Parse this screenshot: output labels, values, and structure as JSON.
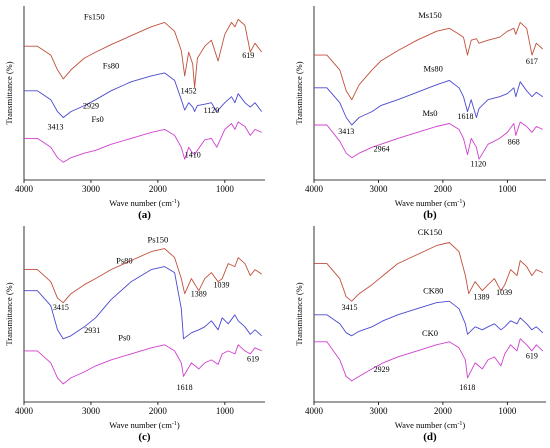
{
  "chart_data": [
    {
      "type": "line",
      "panel": "(a)",
      "xlabel": "Wave number (cm",
      "xlabel_sup": "-1",
      "xlabel_end": ")",
      "ylabel": "Transmittance (%)",
      "xlim": [
        4000,
        400
      ],
      "xticks": [
        "4000",
        "3000",
        "2000",
        "1000"
      ],
      "colors": [
        "#c0503c",
        "#4a4ad0",
        "#d040d0"
      ],
      "series": [
        {
          "name": "Fs150",
          "color": "#c0503c",
          "x": [
            4000,
            3800,
            3600,
            3500,
            3413,
            3300,
            3100,
            2929,
            2700,
            2400,
            2100,
            1900,
            1750,
            1650,
            1600,
            1540,
            1480,
            1452,
            1410,
            1300,
            1200,
            1100,
            1000,
            900,
            850,
            800,
            700,
            619,
            550,
            450
          ],
          "y": [
            0.78,
            0.78,
            0.72,
            0.62,
            0.56,
            0.62,
            0.7,
            0.74,
            0.79,
            0.85,
            0.91,
            0.94,
            0.88,
            0.75,
            0.58,
            0.74,
            0.66,
            0.5,
            0.7,
            0.78,
            0.82,
            0.68,
            0.86,
            0.94,
            0.91,
            0.96,
            0.92,
            0.74,
            0.8,
            0.74
          ]
        },
        {
          "name": "Fs80",
          "color": "#4a4ad0",
          "x": [
            4000,
            3800,
            3600,
            3500,
            3413,
            3300,
            3100,
            2929,
            2700,
            2400,
            2100,
            1900,
            1750,
            1650,
            1600,
            1540,
            1480,
            1452,
            1410,
            1300,
            1200,
            1120,
            1000,
            900,
            850,
            800,
            700,
            619,
            550,
            450
          ],
          "y": [
            0.48,
            0.48,
            0.42,
            0.34,
            0.3,
            0.34,
            0.38,
            0.42,
            0.48,
            0.54,
            0.58,
            0.6,
            0.55,
            0.42,
            0.35,
            0.4,
            0.37,
            0.34,
            0.38,
            0.39,
            0.4,
            0.34,
            0.4,
            0.44,
            0.4,
            0.46,
            0.4,
            0.37,
            0.4,
            0.34
          ]
        },
        {
          "name": "Fs0",
          "color": "#d040d0",
          "x": [
            4000,
            3800,
            3600,
            3500,
            3413,
            3300,
            3100,
            2929,
            2700,
            2400,
            2100,
            1900,
            1750,
            1650,
            1600,
            1540,
            1480,
            1452,
            1410,
            1300,
            1200,
            1120,
            1000,
            900,
            850,
            800,
            700,
            619,
            550,
            450
          ],
          "y": [
            0.16,
            0.16,
            0.1,
            0.03,
            0.0,
            0.03,
            0.06,
            0.08,
            0.12,
            0.16,
            0.2,
            0.22,
            0.18,
            0.1,
            0.02,
            0.1,
            0.06,
            0.05,
            0.08,
            0.15,
            0.16,
            0.1,
            0.22,
            0.26,
            0.22,
            0.27,
            0.24,
            0.18,
            0.22,
            0.2
          ]
        }
      ],
      "series_labels": [
        {
          "text": "Fs150",
          "x": 2950,
          "y": 0.96
        },
        {
          "text": "Fs80",
          "x": 2700,
          "y": 0.63
        },
        {
          "text": "Fs0",
          "x": 2900,
          "y": 0.27
        }
      ],
      "annotations": [
        {
          "text": "3413",
          "x": 3530,
          "y": 0.22
        },
        {
          "text": "2929",
          "x": 3000,
          "y": 0.36
        },
        {
          "text": "1452",
          "x": 1540,
          "y": 0.46
        },
        {
          "text": "619",
          "x": 650,
          "y": 0.7
        },
        {
          "text": "1120",
          "x": 1200,
          "y": 0.33
        },
        {
          "text": "1410",
          "x": 1480,
          "y": 0.03
        }
      ]
    },
    {
      "type": "line",
      "panel": "(b)",
      "xlabel": "Wave number (cm",
      "xlabel_sup": "-1",
      "xlabel_end": ")",
      "ylabel": "Transmittance (%)",
      "xlim": [
        4000,
        400
      ],
      "xticks": [
        "4000",
        "3000",
        "2000",
        "1000"
      ],
      "colors": [
        "#c0503c",
        "#4a4ad0",
        "#d040d0"
      ],
      "series": [
        {
          "name": "Ms150",
          "color": "#c0503c",
          "x": [
            4000,
            3800,
            3600,
            3500,
            3413,
            3300,
            3100,
            2964,
            2700,
            2400,
            2100,
            1900,
            1750,
            1680,
            1618,
            1560,
            1480,
            1440,
            1300,
            1120,
            1000,
            900,
            868,
            800,
            700,
            617,
            550,
            450
          ],
          "y": [
            0.72,
            0.72,
            0.62,
            0.48,
            0.42,
            0.52,
            0.62,
            0.68,
            0.75,
            0.82,
            0.88,
            0.9,
            0.86,
            0.84,
            0.72,
            0.82,
            0.83,
            0.8,
            0.82,
            0.84,
            0.88,
            0.9,
            0.86,
            0.94,
            0.9,
            0.72,
            0.8,
            0.76
          ]
        },
        {
          "name": "Ms80",
          "color": "#4a4ad0",
          "x": [
            4000,
            3800,
            3600,
            3500,
            3413,
            3300,
            3100,
            2964,
            2700,
            2400,
            2100,
            1900,
            1750,
            1680,
            1618,
            1560,
            1480,
            1440,
            1300,
            1120,
            1000,
            900,
            868,
            800,
            700,
            617,
            550,
            450
          ],
          "y": [
            0.5,
            0.5,
            0.4,
            0.3,
            0.25,
            0.3,
            0.34,
            0.38,
            0.42,
            0.47,
            0.52,
            0.55,
            0.5,
            0.44,
            0.34,
            0.42,
            0.3,
            0.36,
            0.42,
            0.44,
            0.46,
            0.5,
            0.44,
            0.54,
            0.48,
            0.44,
            0.47,
            0.44
          ]
        },
        {
          "name": "Ms0",
          "color": "#d040d0",
          "x": [
            4000,
            3800,
            3600,
            3500,
            3413,
            3300,
            3100,
            2964,
            2700,
            2400,
            2100,
            1900,
            1750,
            1680,
            1618,
            1560,
            1480,
            1440,
            1300,
            1120,
            1000,
            900,
            868,
            800,
            700,
            617,
            550,
            450
          ],
          "y": [
            0.25,
            0.25,
            0.14,
            0.06,
            0.03,
            0.06,
            0.1,
            0.12,
            0.16,
            0.2,
            0.24,
            0.26,
            0.22,
            0.16,
            0.05,
            0.16,
            0.1,
            0.02,
            0.12,
            0.16,
            0.2,
            0.26,
            0.18,
            0.27,
            0.24,
            0.2,
            0.24,
            0.22
          ]
        }
      ],
      "series_labels": [
        {
          "text": "Ms150",
          "x": 2200,
          "y": 0.97
        },
        {
          "text": "Ms80",
          "x": 2150,
          "y": 0.61
        },
        {
          "text": "Ms0",
          "x": 2200,
          "y": 0.31
        }
      ],
      "annotations": [
        {
          "text": "3413",
          "x": 3500,
          "y": 0.19
        },
        {
          "text": "2964",
          "x": 2950,
          "y": 0.07
        },
        {
          "text": "1618",
          "x": 1650,
          "y": 0.29
        },
        {
          "text": "868",
          "x": 900,
          "y": 0.12
        },
        {
          "text": "1120",
          "x": 1450,
          "y": -0.03
        },
        {
          "text": "617",
          "x": 620,
          "y": 0.66
        }
      ]
    },
    {
      "type": "line",
      "panel": "(c)",
      "xlabel": "Wave number (cm",
      "xlabel_sup": "-1",
      "xlabel_end": ")",
      "ylabel": "Transmittance (%)",
      "xlim": [
        4000,
        400
      ],
      "xticks": [
        "4000",
        "3000",
        "2000",
        "1000"
      ],
      "colors": [
        "#c0503c",
        "#4a4ad0",
        "#d040d0"
      ],
      "series": [
        {
          "name": "Ps150",
          "color": "#c0503c",
          "x": [
            4000,
            3800,
            3600,
            3500,
            3415,
            3300,
            3100,
            2931,
            2700,
            2400,
            2100,
            1900,
            1750,
            1650,
            1600,
            1500,
            1389,
            1300,
            1200,
            1100,
            1039,
            950,
            850,
            800,
            700,
            619,
            550,
            450
          ],
          "y": [
            0.76,
            0.76,
            0.68,
            0.57,
            0.54,
            0.6,
            0.66,
            0.7,
            0.76,
            0.82,
            0.88,
            0.9,
            0.84,
            0.7,
            0.6,
            0.7,
            0.62,
            0.7,
            0.74,
            0.68,
            0.7,
            0.8,
            0.78,
            0.84,
            0.8,
            0.72,
            0.76,
            0.73
          ]
        },
        {
          "name": "Ps80",
          "color": "#4a4ad0",
          "x": [
            4000,
            3800,
            3600,
            3500,
            3415,
            3300,
            3100,
            2931,
            2700,
            2400,
            2100,
            1900,
            1750,
            1650,
            1618,
            1500,
            1389,
            1300,
            1200,
            1100,
            1039,
            950,
            850,
            800,
            700,
            619,
            550,
            450
          ],
          "y": [
            0.62,
            0.62,
            0.52,
            0.36,
            0.3,
            0.32,
            0.38,
            0.44,
            0.56,
            0.68,
            0.76,
            0.78,
            0.74,
            0.5,
            0.3,
            0.34,
            0.36,
            0.38,
            0.42,
            0.36,
            0.44,
            0.4,
            0.46,
            0.42,
            0.38,
            0.33,
            0.36,
            0.32
          ]
        },
        {
          "name": "Ps0",
          "color": "#d040d0",
          "x": [
            4000,
            3800,
            3600,
            3500,
            3415,
            3300,
            3100,
            2931,
            2700,
            2400,
            2100,
            1900,
            1750,
            1650,
            1618,
            1500,
            1389,
            1300,
            1200,
            1100,
            1039,
            950,
            850,
            800,
            700,
            619,
            550,
            450
          ],
          "y": [
            0.22,
            0.22,
            0.14,
            0.04,
            0.0,
            0.04,
            0.08,
            0.12,
            0.16,
            0.2,
            0.24,
            0.26,
            0.22,
            0.14,
            0.05,
            0.14,
            0.1,
            0.14,
            0.16,
            0.13,
            0.2,
            0.22,
            0.2,
            0.26,
            0.22,
            0.2,
            0.24,
            0.22
          ]
        }
      ],
      "series_labels": [
        {
          "text": "Ps150",
          "x": 2000,
          "y": 0.94
        },
        {
          "text": "Ps80",
          "x": 2500,
          "y": 0.8
        },
        {
          "text": "Ps0",
          "x": 2500,
          "y": 0.29
        }
      ],
      "annotations": [
        {
          "text": "3415",
          "x": 3450,
          "y": 0.49
        },
        {
          "text": "2931",
          "x": 2980,
          "y": 0.34
        },
        {
          "text": "1389",
          "x": 1390,
          "y": 0.58
        },
        {
          "text": "1039",
          "x": 1050,
          "y": 0.64
        },
        {
          "text": "1618",
          "x": 1600,
          "y": -0.04
        },
        {
          "text": "619",
          "x": 580,
          "y": 0.15
        }
      ]
    },
    {
      "type": "line",
      "panel": "(d)",
      "xlabel": "Wave number (cm",
      "xlabel_sup": "-1",
      "xlabel_end": ")",
      "ylabel": "Transmittance (%)",
      "xlim": [
        4000,
        400
      ],
      "xticks": [
        "4000",
        "3000",
        "2000",
        "1000"
      ],
      "colors": [
        "#c0503c",
        "#4a4ad0",
        "#d040d0"
      ],
      "series": [
        {
          "name": "CK150",
          "color": "#c0503c",
          "x": [
            4000,
            3800,
            3600,
            3500,
            3415,
            3300,
            3100,
            2929,
            2700,
            2400,
            2100,
            1900,
            1750,
            1650,
            1600,
            1500,
            1389,
            1300,
            1200,
            1100,
            1039,
            950,
            850,
            800,
            700,
            619,
            550,
            450
          ],
          "y": [
            0.8,
            0.8,
            0.7,
            0.58,
            0.55,
            0.6,
            0.66,
            0.72,
            0.8,
            0.86,
            0.92,
            0.94,
            0.88,
            0.72,
            0.6,
            0.68,
            0.62,
            0.66,
            0.7,
            0.62,
            0.66,
            0.76,
            0.72,
            0.82,
            0.78,
            0.72,
            0.76,
            0.74
          ]
        },
        {
          "name": "CK80",
          "color": "#4a4ad0",
          "x": [
            4000,
            3800,
            3600,
            3500,
            3415,
            3300,
            3100,
            2929,
            2700,
            2400,
            2100,
            1900,
            1750,
            1650,
            1618,
            1500,
            1389,
            1300,
            1200,
            1100,
            1039,
            950,
            850,
            800,
            700,
            619,
            550,
            450
          ],
          "y": [
            0.46,
            0.46,
            0.4,
            0.34,
            0.32,
            0.35,
            0.38,
            0.42,
            0.46,
            0.5,
            0.54,
            0.55,
            0.5,
            0.4,
            0.33,
            0.38,
            0.36,
            0.38,
            0.4,
            0.36,
            0.38,
            0.42,
            0.4,
            0.44,
            0.4,
            0.36,
            0.38,
            0.34
          ]
        },
        {
          "name": "CK0",
          "color": "#d040d0",
          "x": [
            4000,
            3800,
            3600,
            3500,
            3415,
            3300,
            3100,
            2929,
            2700,
            2400,
            2100,
            1900,
            1750,
            1650,
            1618,
            1500,
            1389,
            1300,
            1200,
            1100,
            1039,
            950,
            850,
            800,
            700,
            619,
            550,
            450
          ],
          "y": [
            0.28,
            0.28,
            0.16,
            0.05,
            0.02,
            0.05,
            0.1,
            0.14,
            0.18,
            0.22,
            0.26,
            0.28,
            0.24,
            0.16,
            0.04,
            0.14,
            0.1,
            0.16,
            0.18,
            0.12,
            0.2,
            0.26,
            0.22,
            0.3,
            0.26,
            0.22,
            0.26,
            0.22
          ]
        }
      ],
      "series_labels": [
        {
          "text": "CK150",
          "x": 2200,
          "y": 0.99
        },
        {
          "text": "CK80",
          "x": 2150,
          "y": 0.6
        },
        {
          "text": "CK0",
          "x": 2200,
          "y": 0.32
        }
      ],
      "annotations": [
        {
          "text": "3415",
          "x": 3450,
          "y": 0.49
        },
        {
          "text": "1389",
          "x": 1400,
          "y": 0.56
        },
        {
          "text": "1039",
          "x": 1050,
          "y": 0.59
        },
        {
          "text": "2929",
          "x": 2950,
          "y": 0.08
        },
        {
          "text": "1618",
          "x": 1620,
          "y": -0.04
        },
        {
          "text": "619",
          "x": 620,
          "y": 0.17
        }
      ]
    }
  ]
}
